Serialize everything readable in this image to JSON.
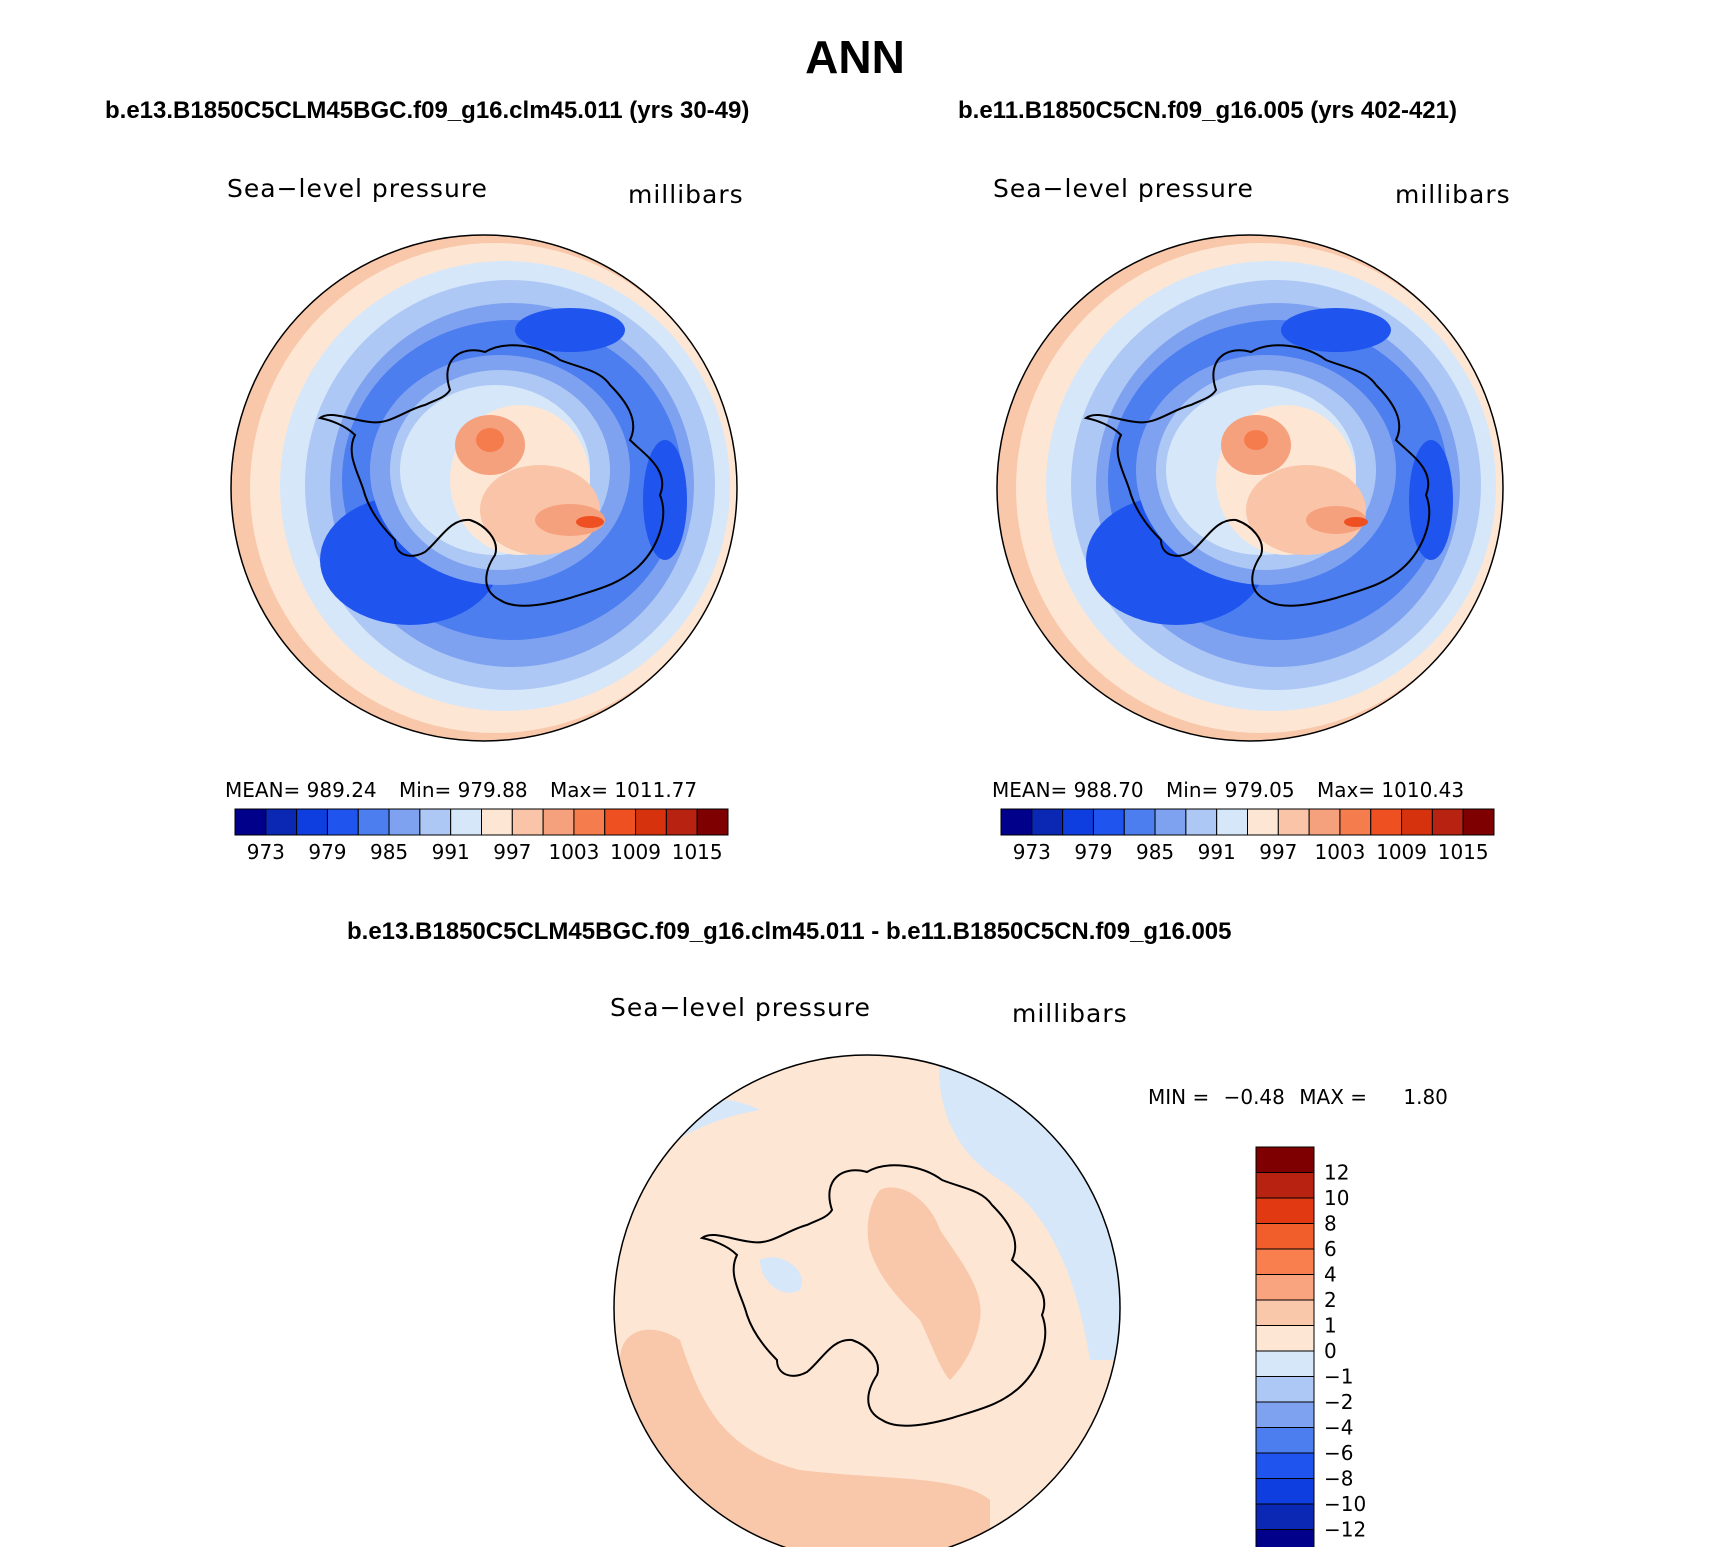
{
  "page": {
    "title": "ANN"
  },
  "panels": [
    {
      "case": "b.e13.B1850C5CLM45BGC.f09_g16.clm45.011 (yrs 30-49)",
      "variable": "Sea−level pressure",
      "units": "millibars",
      "mean_label": "MEAN=",
      "mean": "989.24",
      "min_label": "Min=",
      "min": "979.88",
      "max_label": "Max=",
      "max": "1011.77"
    },
    {
      "case": "b.e11.B1850C5CN.f09_g16.005 (yrs 402-421)",
      "variable": "Sea−level pressure",
      "units": "millibars",
      "mean_label": "MEAN=",
      "mean": "988.70",
      "min_label": "Min=",
      "min": "979.05",
      "max_label": "Max=",
      "max": "1010.43"
    }
  ],
  "diff": {
    "case": "b.e13.B1850C5CLM45BGC.f09_g16.clm45.011 - b.e11.B1850C5CN.f09_g16.005",
    "variable": "Sea−level pressure",
    "units": "millibars",
    "min_label": "MIN =",
    "min": "−0.48",
    "max_label": "MAX =",
    "max": "1.80"
  },
  "chart_data": [
    {
      "type": "heatmap",
      "title": "Sea-level pressure (case 1, yrs 30-49)",
      "projection": "south polar stereographic",
      "units": "millibars",
      "stats": {
        "mean": 989.24,
        "min": 979.88,
        "max": 1011.77
      },
      "colorbar": {
        "tick_labels": [
          "973",
          "979",
          "985",
          "991",
          "997",
          "1003",
          "1009",
          "1015"
        ],
        "colors": [
          "#00008b",
          "#0a28b4",
          "#0f3ee0",
          "#1f55ee",
          "#4c7ef0",
          "#7fa2f0",
          "#aec8f5",
          "#d6e7fa",
          "#fde6d4",
          "#f9c4a7",
          "#f6a17e",
          "#f57c4d",
          "#ee5022",
          "#d7320e",
          "#b82210",
          "#7f0000"
        ]
      }
    },
    {
      "type": "heatmap",
      "title": "Sea-level pressure (case 2, yrs 402-421)",
      "projection": "south polar stereographic",
      "units": "millibars",
      "stats": {
        "mean": 988.7,
        "min": 979.05,
        "max": 1010.43
      },
      "colorbar": {
        "tick_labels": [
          "973",
          "979",
          "985",
          "991",
          "997",
          "1003",
          "1009",
          "1015"
        ],
        "colors": [
          "#00008b",
          "#0a28b4",
          "#0f3ee0",
          "#1f55ee",
          "#4c7ef0",
          "#7fa2f0",
          "#aec8f5",
          "#d6e7fa",
          "#fde6d4",
          "#f9c4a7",
          "#f6a17e",
          "#f57c4d",
          "#ee5022",
          "#d7320e",
          "#b82210",
          "#7f0000"
        ]
      }
    },
    {
      "type": "heatmap",
      "title": "Sea-level pressure difference",
      "projection": "south polar stereographic",
      "units": "millibars",
      "stats": {
        "min": -0.48,
        "max": 1.8
      },
      "colorbar": {
        "tick_labels": [
          "12",
          "10",
          "8",
          "6",
          "4",
          "2",
          "1",
          "0",
          "−1",
          "−2",
          "−4",
          "−6",
          "−8",
          "−10",
          "−12"
        ],
        "colors": [
          "#7f0000",
          "#b82210",
          "#e13a12",
          "#f15d2b",
          "#f97f4e",
          "#f9a47e",
          "#f9c7a9",
          "#fde6d4",
          "#d6e7fa",
          "#aec8f5",
          "#7fa2f0",
          "#4c7ef0",
          "#1f55ee",
          "#0f3ee0",
          "#0a28b4",
          "#00008b"
        ]
      }
    }
  ]
}
